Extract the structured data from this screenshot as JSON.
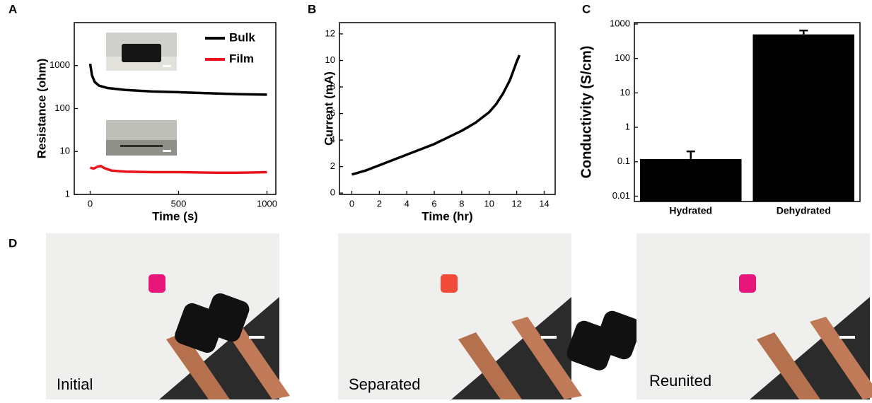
{
  "panel_labels": [
    "A",
    "B",
    "C",
    "D"
  ],
  "chart_data": [
    {
      "type": "line",
      "x_label": "Time (s)",
      "y_label": "Resistance (ohm)",
      "log_y": true,
      "xlim": [
        -90,
        1050
      ],
      "xticks": [
        0,
        500,
        1000
      ],
      "ylim": [
        1,
        10000
      ],
      "yticks": [
        1,
        10,
        100,
        1000
      ],
      "legend": "top-right",
      "series": [
        {
          "name": "Bulk",
          "color": "#000000",
          "x": [
            0,
            10,
            25,
            50,
            100,
            200,
            350,
            500,
            700,
            850,
            1000
          ],
          "values": [
            1100,
            600,
            420,
            340,
            300,
            270,
            250,
            240,
            225,
            215,
            210
          ]
        },
        {
          "name": "Film",
          "color": "#e8131b",
          "x": [
            0,
            20,
            40,
            60,
            80,
            120,
            200,
            350,
            500,
            700,
            850,
            1000
          ],
          "values": [
            4.2,
            4.0,
            4.4,
            4.6,
            4.1,
            3.6,
            3.4,
            3.3,
            3.3,
            3.2,
            3.2,
            3.3
          ]
        }
      ]
    },
    {
      "type": "line",
      "x_label": "Time (hr)",
      "y_label": "Current (mA)",
      "log_y": false,
      "xlim": [
        -0.9,
        14.8
      ],
      "xticks": [
        0,
        2,
        4,
        6,
        8,
        10,
        12,
        14
      ],
      "ylim": [
        -0.1,
        12.85
      ],
      "yticks": [
        0,
        2,
        4,
        6,
        8,
        10,
        12
      ],
      "series": [
        {
          "color": "#000000",
          "x": [
            0,
            1,
            2,
            3,
            4,
            5,
            6,
            7,
            8,
            9,
            10,
            10.5,
            11,
            11.5,
            12,
            12.2
          ],
          "values": [
            1.4,
            1.7,
            2.1,
            2.5,
            2.9,
            3.3,
            3.7,
            4.2,
            4.7,
            5.3,
            6.1,
            6.7,
            7.5,
            8.5,
            9.9,
            10.4
          ]
        }
      ]
    },
    {
      "type": "bar",
      "y_label": "Conductivity (S/cm)",
      "log_y": true,
      "color": "#000000",
      "categories": [
        "Hydrated",
        "Dehydrated"
      ],
      "values": [
        0.12,
        500
      ],
      "errors": [
        0.08,
        150
      ],
      "ylim": [
        0.007,
        1100
      ],
      "yticks": [
        0.01,
        0.1,
        1,
        10,
        100,
        1000
      ]
    }
  ],
  "photos": [
    "Initial",
    "Separated",
    "Reunited"
  ]
}
